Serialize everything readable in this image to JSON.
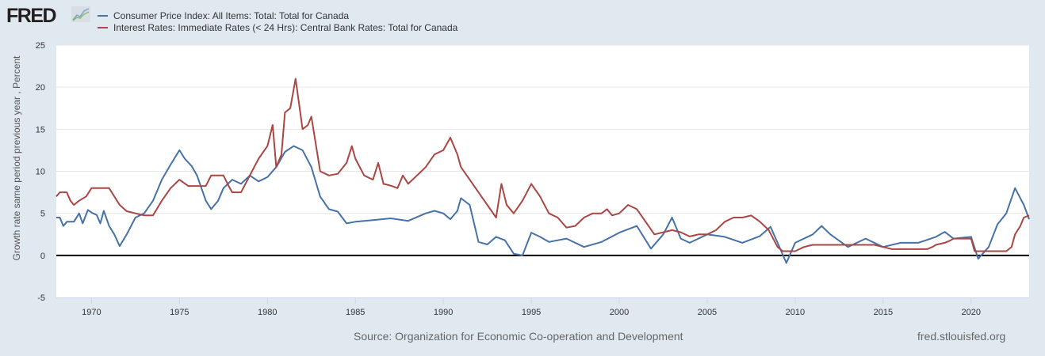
{
  "header": {
    "logo_text": "FRED",
    "logo_icon": "line-chart-icon"
  },
  "footer": {
    "source": "Source: Organization for Economic Co-operation and Development",
    "url": "fred.stlouisfed.org"
  },
  "chart_data": {
    "type": "line",
    "title": "",
    "xlabel": "",
    "ylabel": "Growth rate same period previous year , Percent",
    "xlim": [
      1968.0,
      2023.3
    ],
    "ylim": [
      -5,
      25
    ],
    "yticks": [
      -5,
      0,
      5,
      10,
      15,
      20,
      25
    ],
    "xticks": [
      1970,
      1975,
      1980,
      1985,
      1990,
      1995,
      2000,
      2005,
      2010,
      2015,
      2020
    ],
    "grid": true,
    "zero_line": true,
    "legend_position": "top-left",
    "series": [
      {
        "name": "Consumer Price Index: All Items: Total: Total for Canada",
        "color": "#4572a7",
        "points": [
          [
            1968.0,
            4.5
          ],
          [
            1968.2,
            4.5
          ],
          [
            1968.4,
            3.5
          ],
          [
            1968.6,
            4.0
          ],
          [
            1969.0,
            4.0
          ],
          [
            1969.3,
            5.0
          ],
          [
            1969.5,
            3.8
          ],
          [
            1969.8,
            5.4
          ],
          [
            1970.0,
            5.1
          ],
          [
            1970.3,
            4.8
          ],
          [
            1970.5,
            3.8
          ],
          [
            1970.7,
            5.3
          ],
          [
            1971.0,
            3.5
          ],
          [
            1971.3,
            2.5
          ],
          [
            1971.6,
            1.1
          ],
          [
            1972.0,
            2.5
          ],
          [
            1972.5,
            4.5
          ],
          [
            1973.0,
            5.0
          ],
          [
            1973.5,
            6.5
          ],
          [
            1974.0,
            9.0
          ],
          [
            1974.5,
            10.8
          ],
          [
            1975.0,
            12.5
          ],
          [
            1975.3,
            11.5
          ],
          [
            1975.7,
            10.6
          ],
          [
            1976.0,
            9.5
          ],
          [
            1976.5,
            6.5
          ],
          [
            1976.8,
            5.5
          ],
          [
            1977.2,
            6.5
          ],
          [
            1977.5,
            8.0
          ],
          [
            1978.0,
            9.0
          ],
          [
            1978.5,
            8.5
          ],
          [
            1979.0,
            9.5
          ],
          [
            1979.5,
            8.8
          ],
          [
            1980.0,
            9.3
          ],
          [
            1980.5,
            10.5
          ],
          [
            1981.0,
            12.3
          ],
          [
            1981.5,
            13.0
          ],
          [
            1982.0,
            12.5
          ],
          [
            1982.5,
            10.5
          ],
          [
            1983.0,
            7.0
          ],
          [
            1983.5,
            5.5
          ],
          [
            1984.0,
            5.2
          ],
          [
            1984.5,
            3.8
          ],
          [
            1985.0,
            4.0
          ],
          [
            1986.0,
            4.2
          ],
          [
            1987.0,
            4.4
          ],
          [
            1988.0,
            4.1
          ],
          [
            1989.0,
            5.0
          ],
          [
            1989.5,
            5.3
          ],
          [
            1990.0,
            5.0
          ],
          [
            1990.4,
            4.3
          ],
          [
            1990.8,
            5.3
          ],
          [
            1991.0,
            6.8
          ],
          [
            1991.5,
            6.0
          ],
          [
            1992.0,
            1.6
          ],
          [
            1992.5,
            1.3
          ],
          [
            1993.0,
            2.2
          ],
          [
            1993.5,
            1.8
          ],
          [
            1994.0,
            0.2
          ],
          [
            1994.5,
            0.0
          ],
          [
            1995.0,
            2.7
          ],
          [
            1995.5,
            2.2
          ],
          [
            1996.0,
            1.6
          ],
          [
            1997.0,
            2.0
          ],
          [
            1998.0,
            1.0
          ],
          [
            1999.0,
            1.6
          ],
          [
            2000.0,
            2.7
          ],
          [
            2001.0,
            3.5
          ],
          [
            2001.8,
            0.8
          ],
          [
            2002.5,
            2.5
          ],
          [
            2003.0,
            4.5
          ],
          [
            2003.5,
            2.0
          ],
          [
            2004.0,
            1.5
          ],
          [
            2005.0,
            2.5
          ],
          [
            2006.0,
            2.2
          ],
          [
            2007.0,
            1.5
          ],
          [
            2008.0,
            2.3
          ],
          [
            2008.6,
            3.4
          ],
          [
            2009.0,
            1.5
          ],
          [
            2009.5,
            -0.9
          ],
          [
            2010.0,
            1.5
          ],
          [
            2011.0,
            2.5
          ],
          [
            2011.5,
            3.5
          ],
          [
            2012.0,
            2.5
          ],
          [
            2013.0,
            1.0
          ],
          [
            2014.0,
            2.0
          ],
          [
            2015.0,
            1.0
          ],
          [
            2016.0,
            1.5
          ],
          [
            2017.0,
            1.5
          ],
          [
            2018.0,
            2.2
          ],
          [
            2018.5,
            2.8
          ],
          [
            2019.0,
            2.0
          ],
          [
            2020.0,
            2.2
          ],
          [
            2020.4,
            -0.4
          ],
          [
            2021.0,
            1.0
          ],
          [
            2021.5,
            3.7
          ],
          [
            2022.0,
            5.0
          ],
          [
            2022.5,
            8.0
          ],
          [
            2023.0,
            6.0
          ],
          [
            2023.3,
            4.3
          ]
        ]
      },
      {
        "name": "Interest Rates: Immediate Rates (< 24 Hrs): Central Bank Rates: Total for Canada",
        "color": "#aa4643",
        "points": [
          [
            1968.0,
            7.0
          ],
          [
            1968.2,
            7.5
          ],
          [
            1968.6,
            7.5
          ],
          [
            1968.8,
            6.5
          ],
          [
            1969.0,
            6.0
          ],
          [
            1969.3,
            6.5
          ],
          [
            1969.7,
            7.0
          ],
          [
            1970.0,
            8.0
          ],
          [
            1971.0,
            8.0
          ],
          [
            1971.3,
            7.0
          ],
          [
            1971.6,
            6.0
          ],
          [
            1972.0,
            5.25
          ],
          [
            1973.0,
            4.75
          ],
          [
            1973.5,
            4.75
          ],
          [
            1974.0,
            6.5
          ],
          [
            1974.5,
            8.0
          ],
          [
            1975.0,
            9.0
          ],
          [
            1975.5,
            8.25
          ],
          [
            1976.5,
            8.25
          ],
          [
            1976.8,
            9.5
          ],
          [
            1977.5,
            9.5
          ],
          [
            1977.8,
            8.25
          ],
          [
            1978.0,
            7.5
          ],
          [
            1978.5,
            7.5
          ],
          [
            1979.0,
            9.5
          ],
          [
            1979.5,
            11.5
          ],
          [
            1980.0,
            13.0
          ],
          [
            1980.3,
            15.5
          ],
          [
            1980.5,
            10.5
          ],
          [
            1980.8,
            12.0
          ],
          [
            1981.0,
            17.0
          ],
          [
            1981.3,
            17.5
          ],
          [
            1981.6,
            21.0
          ],
          [
            1982.0,
            15.0
          ],
          [
            1982.3,
            15.5
          ],
          [
            1982.5,
            16.5
          ],
          [
            1983.0,
            10.0
          ],
          [
            1983.5,
            9.5
          ],
          [
            1984.0,
            9.7
          ],
          [
            1984.5,
            11.0
          ],
          [
            1984.8,
            13.0
          ],
          [
            1985.0,
            11.5
          ],
          [
            1985.5,
            9.5
          ],
          [
            1986.0,
            9.0
          ],
          [
            1986.3,
            11.0
          ],
          [
            1986.6,
            8.5
          ],
          [
            1987.0,
            8.3
          ],
          [
            1987.4,
            8.0
          ],
          [
            1987.7,
            9.5
          ],
          [
            1988.0,
            8.5
          ],
          [
            1988.5,
            9.5
          ],
          [
            1989.0,
            10.5
          ],
          [
            1989.5,
            12.0
          ],
          [
            1990.0,
            12.5
          ],
          [
            1990.4,
            14.0
          ],
          [
            1990.8,
            12.0
          ],
          [
            1991.0,
            10.5
          ],
          [
            1991.5,
            9.0
          ],
          [
            1992.0,
            7.5
          ],
          [
            1992.5,
            6.0
          ],
          [
            1993.0,
            4.5
          ],
          [
            1993.3,
            8.5
          ],
          [
            1993.6,
            6.0
          ],
          [
            1994.0,
            5.0
          ],
          [
            1994.5,
            6.5
          ],
          [
            1995.0,
            8.5
          ],
          [
            1995.5,
            7.0
          ],
          [
            1996.0,
            5.0
          ],
          [
            1996.5,
            4.5
          ],
          [
            1997.0,
            3.3
          ],
          [
            1997.5,
            3.5
          ],
          [
            1998.0,
            4.5
          ],
          [
            1998.5,
            5.0
          ],
          [
            1999.0,
            5.0
          ],
          [
            1999.3,
            5.5
          ],
          [
            1999.6,
            4.75
          ],
          [
            2000.0,
            5.0
          ],
          [
            2000.5,
            6.0
          ],
          [
            2001.0,
            5.5
          ],
          [
            2001.5,
            4.0
          ],
          [
            2002.0,
            2.5
          ],
          [
            2002.5,
            2.75
          ],
          [
            2003.0,
            3.0
          ],
          [
            2003.5,
            2.75
          ],
          [
            2004.0,
            2.25
          ],
          [
            2004.5,
            2.5
          ],
          [
            2005.0,
            2.5
          ],
          [
            2005.5,
            3.0
          ],
          [
            2006.0,
            4.0
          ],
          [
            2006.5,
            4.5
          ],
          [
            2007.0,
            4.5
          ],
          [
            2007.5,
            4.75
          ],
          [
            2008.0,
            4.0
          ],
          [
            2008.5,
            3.0
          ],
          [
            2009.0,
            1.0
          ],
          [
            2009.3,
            0.5
          ],
          [
            2010.0,
            0.5
          ],
          [
            2010.5,
            1.0
          ],
          [
            2011.0,
            1.25
          ],
          [
            2014.5,
            1.25
          ],
          [
            2015.0,
            1.0
          ],
          [
            2015.5,
            0.75
          ],
          [
            2017.5,
            0.75
          ],
          [
            2017.8,
            1.0
          ],
          [
            2018.0,
            1.25
          ],
          [
            2018.5,
            1.5
          ],
          [
            2018.8,
            1.75
          ],
          [
            2019.0,
            2.0
          ],
          [
            2020.0,
            2.0
          ],
          [
            2020.2,
            0.5
          ],
          [
            2021.0,
            0.5
          ],
          [
            2022.0,
            0.5
          ],
          [
            2022.3,
            1.0
          ],
          [
            2022.5,
            2.5
          ],
          [
            2022.8,
            3.5
          ],
          [
            2023.0,
            4.5
          ],
          [
            2023.3,
            4.75
          ]
        ]
      }
    ]
  }
}
